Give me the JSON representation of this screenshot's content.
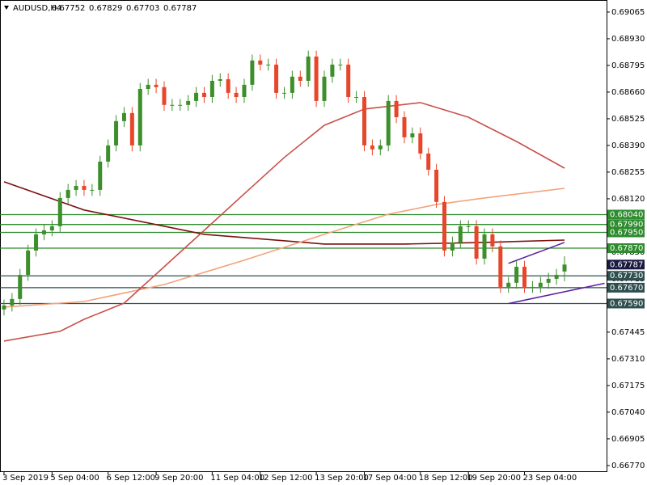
{
  "chart_data": {
    "type": "candlestick",
    "header": {
      "symbol": "AUDUSD,H4",
      "ohlc": [
        "0.67752",
        "0.67829",
        "0.67703",
        "0.67787"
      ]
    },
    "bull_color": "#3c8f2a",
    "bear_color": "#e8462a",
    "candles": [
      [
        0.6756,
        0.6761,
        0.6753,
        0.6758
      ],
      [
        0.6758,
        0.67643,
        0.6755,
        0.67613
      ],
      [
        0.67613,
        0.67765,
        0.67583,
        0.67735
      ],
      [
        0.67735,
        0.67888,
        0.67705,
        0.67858
      ],
      [
        0.67858,
        0.6797,
        0.67828,
        0.6794
      ],
      [
        0.6794,
        0.6799,
        0.6791,
        0.6796
      ],
      [
        0.6796,
        0.68011,
        0.6793,
        0.67981
      ],
      [
        0.67981,
        0.68154,
        0.67951,
        0.68124
      ],
      [
        0.68124,
        0.68195,
        0.68094,
        0.68165
      ],
      [
        0.68165,
        0.68215,
        0.68135,
        0.68185
      ],
      [
        0.68185,
        0.68215,
        0.68135,
        0.68165
      ],
      [
        0.68165,
        0.68195,
        0.68135,
        0.68165
      ],
      [
        0.68165,
        0.68338,
        0.68135,
        0.68308
      ],
      [
        0.68308,
        0.6842,
        0.68278,
        0.6839
      ],
      [
        0.6839,
        0.68543,
        0.6836,
        0.68513
      ],
      [
        0.68513,
        0.68584,
        0.68483,
        0.68554
      ],
      [
        0.68554,
        0.68584,
        0.6836,
        0.6839
      ],
      [
        0.6839,
        0.68706,
        0.6836,
        0.68676
      ],
      [
        0.68676,
        0.68727,
        0.68646,
        0.68697
      ],
      [
        0.68697,
        0.68727,
        0.68655,
        0.68685
      ],
      [
        0.68685,
        0.68715,
        0.68565,
        0.68595
      ],
      [
        0.68595,
        0.68625,
        0.68565,
        0.68595
      ],
      [
        0.68595,
        0.68625,
        0.68565,
        0.68595
      ],
      [
        0.68595,
        0.68645,
        0.68565,
        0.68615
      ],
      [
        0.68615,
        0.68686,
        0.68585,
        0.68656
      ],
      [
        0.68656,
        0.68686,
        0.68605,
        0.68635
      ],
      [
        0.68635,
        0.68747,
        0.68605,
        0.68717
      ],
      [
        0.68717,
        0.68755,
        0.68687,
        0.68725
      ],
      [
        0.68725,
        0.68755,
        0.68626,
        0.68656
      ],
      [
        0.68656,
        0.68686,
        0.68605,
        0.68635
      ],
      [
        0.68635,
        0.68727,
        0.68605,
        0.68697
      ],
      [
        0.68697,
        0.6885,
        0.68667,
        0.6882
      ],
      [
        0.6882,
        0.6885,
        0.68769,
        0.68799
      ],
      [
        0.68799,
        0.68829,
        0.68769,
        0.68799
      ],
      [
        0.68799,
        0.68829,
        0.68626,
        0.68656
      ],
      [
        0.68656,
        0.68686,
        0.68626,
        0.68656
      ],
      [
        0.68656,
        0.68768,
        0.68626,
        0.68738
      ],
      [
        0.68738,
        0.68768,
        0.68687,
        0.68717
      ],
      [
        0.68717,
        0.6887,
        0.68687,
        0.6884
      ],
      [
        0.6884,
        0.6887,
        0.68585,
        0.68615
      ],
      [
        0.68615,
        0.68768,
        0.68585,
        0.68738
      ],
      [
        0.68738,
        0.68829,
        0.68708,
        0.68799
      ],
      [
        0.68799,
        0.68829,
        0.68769,
        0.68799
      ],
      [
        0.68799,
        0.68829,
        0.68605,
        0.68635
      ],
      [
        0.68635,
        0.68665,
        0.68605,
        0.68635
      ],
      [
        0.68635,
        0.68665,
        0.6836,
        0.6839
      ],
      [
        0.6839,
        0.6842,
        0.6834,
        0.6837
      ],
      [
        0.6837,
        0.6842,
        0.6834,
        0.6839
      ],
      [
        0.6839,
        0.68645,
        0.6836,
        0.68615
      ],
      [
        0.68615,
        0.68645,
        0.68503,
        0.68533
      ],
      [
        0.68533,
        0.68563,
        0.68401,
        0.68431
      ],
      [
        0.68431,
        0.68481,
        0.68401,
        0.68451
      ],
      [
        0.68451,
        0.68481,
        0.68319,
        0.68349
      ],
      [
        0.68349,
        0.68379,
        0.68237,
        0.68267
      ],
      [
        0.68267,
        0.68297,
        0.68074,
        0.68104
      ],
      [
        0.68104,
        0.68134,
        0.67828,
        0.67858
      ],
      [
        0.67858,
        0.67929,
        0.67828,
        0.67899
      ],
      [
        0.67899,
        0.68011,
        0.67869,
        0.67981
      ],
      [
        0.67981,
        0.68011,
        0.67951,
        0.67981
      ],
      [
        0.67981,
        0.68011,
        0.67787,
        0.67817
      ],
      [
        0.67817,
        0.6797,
        0.67787,
        0.6794
      ],
      [
        0.6794,
        0.6797,
        0.67849,
        0.67879
      ],
      [
        0.67879,
        0.67909,
        0.67644,
        0.67674
      ],
      [
        0.67674,
        0.67725,
        0.67644,
        0.67695
      ],
      [
        0.67695,
        0.67806,
        0.67665,
        0.67776
      ],
      [
        0.67776,
        0.67806,
        0.67644,
        0.67674
      ],
      [
        0.67674,
        0.67704,
        0.67644,
        0.67674
      ],
      [
        0.67674,
        0.67725,
        0.67644,
        0.67695
      ],
      [
        0.67695,
        0.67745,
        0.67665,
        0.67715
      ],
      [
        0.67715,
        0.67765,
        0.67685,
        0.67735
      ],
      [
        0.67752,
        0.67829,
        0.67703,
        0.67787
      ]
    ],
    "moving_averages": [
      {
        "color": "#7a1010",
        "x": [
          0,
          10,
          25,
          40,
          50,
          60,
          70
        ],
        "values": [
          0.68206,
          0.68063,
          0.6794,
          0.67891,
          0.67891,
          0.67899,
          0.67911
        ]
      },
      {
        "color": "#f4a27a",
        "x": [
          0,
          10,
          20,
          30,
          40,
          48,
          54,
          60,
          70
        ],
        "values": [
          0.67572,
          0.676,
          0.67686,
          0.67809,
          0.6794,
          0.68042,
          0.68091,
          0.68124,
          0.68173
        ]
      },
      {
        "color": "#c8504a",
        "x": [
          0,
          7,
          10,
          15,
          20,
          25,
          30,
          35,
          40,
          45,
          52,
          58,
          64,
          70
        ],
        "values": [
          0.674,
          0.67449,
          0.6751,
          0.67592,
          0.67776,
          0.6796,
          0.68145,
          0.68329,
          0.68492,
          0.68574,
          0.68607,
          0.68533,
          0.6841,
          0.68275
        ]
      }
    ],
    "trendlines": [
      {
        "color": "#5b1fa0",
        "x": [
          63,
          70
        ],
        "values": [
          0.67793,
          0.67899
        ]
      },
      {
        "color": "#5b1fa0",
        "x": [
          63,
          75
        ],
        "values": [
          0.6759,
          0.67692
        ]
      }
    ],
    "levels": [
      {
        "value": 0.6804,
        "label": "0.68040",
        "color": "#2e8b2e"
      },
      {
        "value": 0.6799,
        "label": "0.67990",
        "color": "#2e8b2e"
      },
      {
        "value": 0.6795,
        "label": "0.67950",
        "color": "#2e8b2e"
      },
      {
        "value": 0.6787,
        "label": "0.67870",
        "color": "#2e8b2e"
      },
      {
        "value": 0.6773,
        "label": "0.67730",
        "color": "#2f4f4f"
      },
      {
        "value": 0.6767,
        "label": "0.67670",
        "color": "#2f4f4f"
      },
      {
        "value": 0.6759,
        "label": "0.67590",
        "color": "#2f4f4f"
      }
    ],
    "current_price": {
      "value": 0.67787,
      "label": "0.67787",
      "color": "#1a1a40"
    },
    "xlim": [
      -0.5,
      75.25
    ],
    "xticks": [
      {
        "value": 0,
        "label": "3 Sep 2019"
      },
      {
        "value": 6,
        "label": "5 Sep 04:00"
      },
      {
        "value": 13,
        "label": "6 Sep 12:00"
      },
      {
        "value": 19,
        "label": "9 Sep 20:00"
      },
      {
        "value": 26,
        "label": "11 Sep 04:00"
      },
      {
        "value": 32,
        "label": "12 Sep 12:00"
      },
      {
        "value": 39,
        "label": "13 Sep 20:00"
      },
      {
        "value": 45,
        "label": "17 Sep 04:00"
      },
      {
        "value": 52,
        "label": "18 Sep 12:00"
      },
      {
        "value": 58,
        "label": "19 Sep 20:00"
      },
      {
        "value": 65,
        "label": "23 Sep 04:00"
      }
    ],
    "ylim": [
      0.66741,
      0.69126
    ],
    "yticks": [
      {
        "value": 0.69065,
        "label": "0.69065"
      },
      {
        "value": 0.6893,
        "label": "0.68930"
      },
      {
        "value": 0.68795,
        "label": "0.68795"
      },
      {
        "value": 0.6866,
        "label": "0.68660"
      },
      {
        "value": 0.68525,
        "label": "0.68525"
      },
      {
        "value": 0.6839,
        "label": "0.68390"
      },
      {
        "value": 0.68255,
        "label": "0.68255"
      },
      {
        "value": 0.6812,
        "label": "0.68120"
      },
      {
        "value": 0.67985,
        "label": "0.67985"
      },
      {
        "value": 0.6785,
        "label": "0.67850"
      },
      {
        "value": 0.67715,
        "label": "0.67715"
      },
      {
        "value": 0.6758,
        "label": "0.67580"
      },
      {
        "value": 0.67445,
        "label": "0.67445"
      },
      {
        "value": 0.6731,
        "label": "0.67310"
      },
      {
        "value": 0.67175,
        "label": "0.67175"
      },
      {
        "value": 0.6704,
        "label": "0.67040"
      },
      {
        "value": 0.66905,
        "label": "0.66905"
      },
      {
        "value": 0.6677,
        "label": "0.66770"
      }
    ]
  }
}
